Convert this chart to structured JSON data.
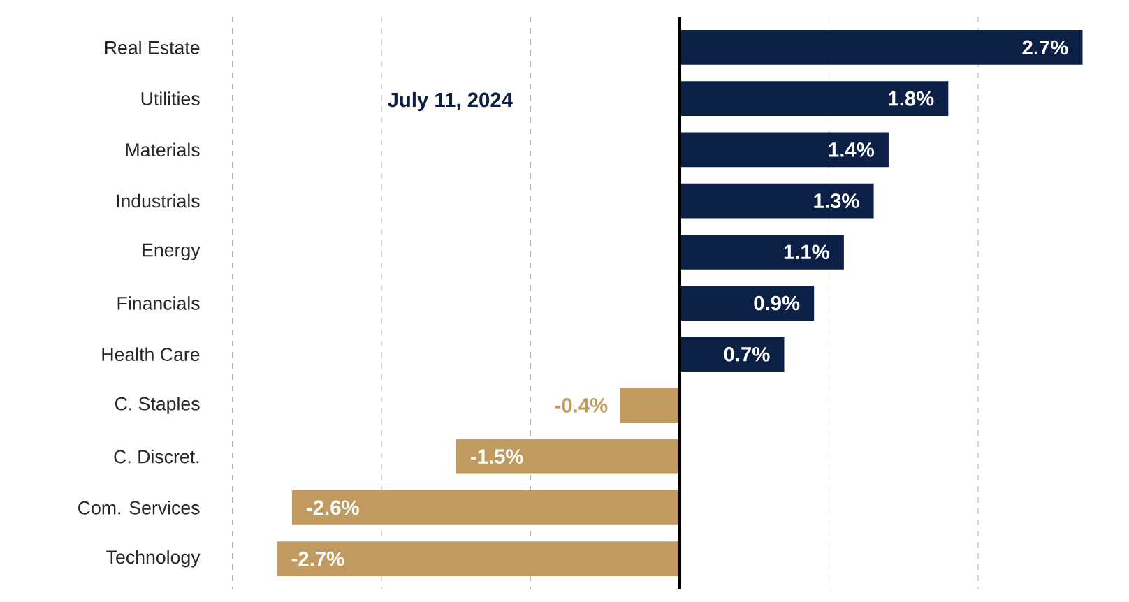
{
  "chart_data": {
    "type": "bar",
    "orientation": "horizontal",
    "categories": [
      "Real Estate",
      "Utilities",
      "Materials",
      "Industrials",
      "Energy",
      "Financials",
      "Health Care",
      "C. Staples",
      "C. Discret.",
      "Com. Services",
      "Technology"
    ],
    "values": [
      2.7,
      1.8,
      1.4,
      1.3,
      1.1,
      0.9,
      0.7,
      -0.4,
      -1.5,
      -2.6,
      -2.7
    ],
    "value_labels": [
      "2.7%",
      "1.8%",
      "1.4%",
      "1.3%",
      "1.1%",
      "0.9%",
      "0.7%",
      "-0.4%",
      "-1.5%",
      "-2.6%",
      "-2.7%"
    ],
    "colors": [
      "#0c1f45",
      "#0c1f45",
      "#0c1f45",
      "#0c1f45",
      "#0c1f45",
      "#0c1f45",
      "#0c1f45",
      "#c09a5f",
      "#c09a5f",
      "#c09a5f",
      "#c09a5f"
    ],
    "xticks": [
      {
        "value": -3,
        "label": null
      },
      {
        "value": -2,
        "label": null
      },
      {
        "value": -1,
        "label": null
      },
      {
        "value": 1,
        "label": null
      },
      {
        "value": 2,
        "label": null
      }
    ],
    "grid": "x",
    "ref_lines": [
      {
        "axis": "x",
        "value": 0,
        "color": "#000000"
      }
    ],
    "annotations": [
      "July 11, 2024"
    ]
  }
}
